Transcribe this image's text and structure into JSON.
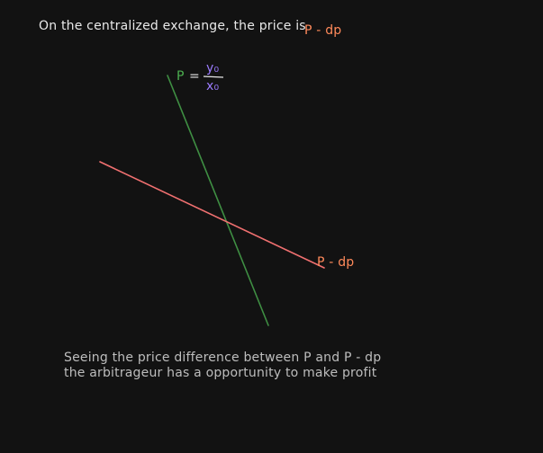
{
  "header": {
    "prefix": "On the centralized exchange, the price is",
    "price_expr": "P - dp"
  },
  "formula": {
    "lhs": "P",
    "equals": "=",
    "numerator": "y₀",
    "denominator": "x₀"
  },
  "labels": {
    "pool_line": "P - dp"
  },
  "caption": {
    "line1": "Seeing the price difference between P and P - dp",
    "line2": "the arbitrageur has a opportunity to make profit"
  },
  "colors": {
    "background": "#121212",
    "text": "#e9e9e9",
    "orange": "#ff8a5b",
    "green": "#4caf50",
    "purple": "#9c7cff",
    "caption": "#bdbdbd"
  }
}
